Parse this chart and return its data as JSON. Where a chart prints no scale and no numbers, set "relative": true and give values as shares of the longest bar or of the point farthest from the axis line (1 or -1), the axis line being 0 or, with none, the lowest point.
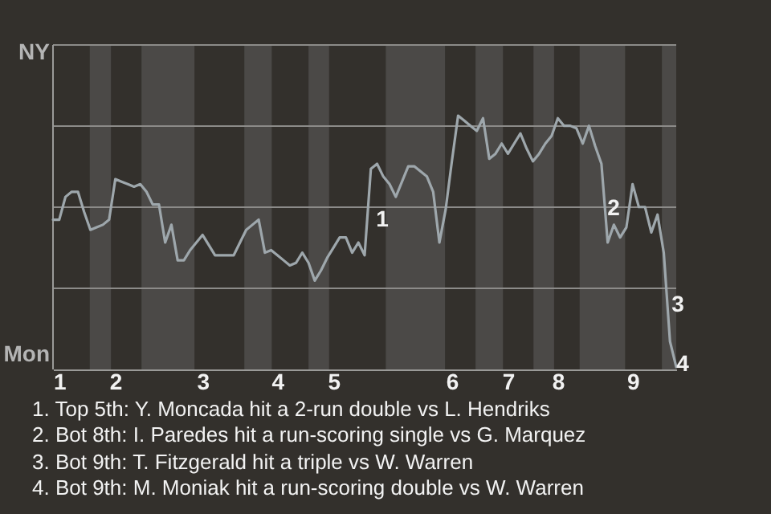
{
  "chart_data": {
    "type": "line",
    "relative": true,
    "color": "#9ea7ac",
    "categories": [
      null,
      "1",
      null,
      null,
      null,
      null,
      null,
      null,
      null,
      null,
      "2",
      null,
      null,
      null,
      null,
      null,
      null,
      null,
      null,
      null,
      null,
      null,
      null,
      null,
      "3",
      null,
      null,
      null,
      null,
      null,
      null,
      null,
      null,
      null,
      null,
      null,
      "4",
      null,
      null,
      null,
      null,
      null,
      null,
      null,
      null,
      "5",
      null,
      null,
      null,
      null,
      null,
      null,
      null,
      null,
      null,
      null,
      null,
      null,
      null,
      null,
      null,
      null,
      null,
      null,
      "6",
      null,
      null,
      null,
      null,
      null,
      null,
      null,
      null,
      "7",
      null,
      null,
      null,
      null,
      null,
      null,
      null,
      "8",
      null,
      null,
      null,
      null,
      null,
      null,
      null,
      null,
      null,
      null,
      null,
      "9",
      null,
      null,
      null,
      null,
      null,
      null,
      null
    ],
    "values": [
      0.59,
      0.59,
      0.68,
      0.7,
      0.7,
      0.62,
      0.55,
      0.56,
      0.57,
      0.59,
      0.75,
      0.74,
      0.73,
      0.72,
      0.73,
      0.7,
      0.65,
      0.65,
      0.5,
      0.57,
      0.43,
      0.43,
      0.47,
      0.5,
      0.53,
      0.49,
      0.45,
      0.45,
      0.45,
      0.45,
      0.5,
      0.55,
      0.57,
      0.59,
      0.46,
      0.47,
      0.45,
      0.43,
      0.41,
      0.42,
      0.46,
      0.42,
      0.35,
      0.39,
      0.44,
      0.48,
      0.52,
      0.52,
      0.46,
      0.5,
      0.45,
      0.79,
      0.81,
      0.76,
      0.73,
      0.68,
      0.74,
      0.8,
      0.8,
      0.78,
      0.76,
      0.7,
      0.5,
      0.63,
      0.82,
      1,
      0.98,
      0.96,
      0.94,
      0.99,
      0.83,
      0.85,
      0.89,
      0.85,
      0.89,
      0.93,
      0.87,
      0.82,
      0.85,
      0.89,
      0.92,
      0.99,
      0.96,
      0.96,
      0.95,
      0.89,
      0.96,
      0.88,
      0.81,
      0.5,
      0.57,
      0.52,
      0.56,
      0.73,
      0.64,
      0.64,
      0.54,
      0.61,
      0.46,
      0.11,
      0.01
    ],
    "grid": "y",
    "annotations": [
      "NY",
      "Mon",
      "1",
      "2",
      "3",
      "4",
      "1. Top 5th: Y. Moncada hit a 2-run double vs L. Hendriks",
      "2. Bot 8th: I. Paredes hit a run-scoring single vs G. Marquez",
      "3. Bot 9th: T. Fitzgerald hit a triple vs W. Warren",
      "4. Bot 9th: M. Moniak hit a run-scoring double vs W. Warren"
    ]
  }
}
